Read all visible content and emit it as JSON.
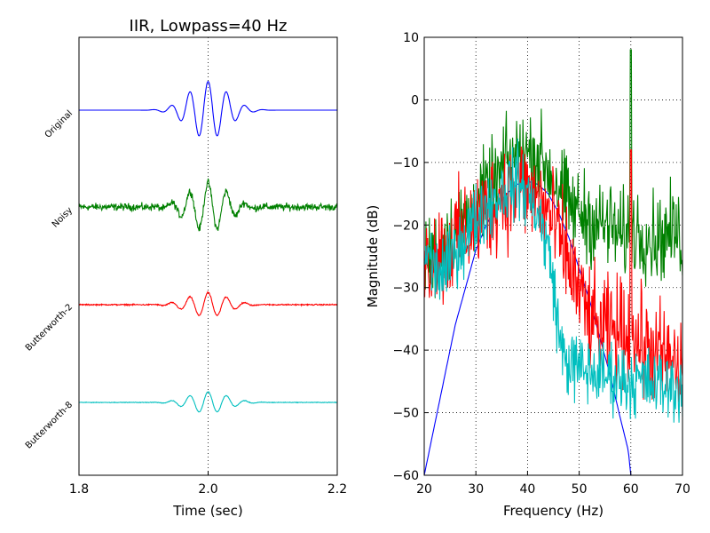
{
  "chart_data": [
    {
      "type": "line",
      "title": "IIR, Lowpass=40 Hz",
      "xlabel": "Time (sec)",
      "ylabel": "",
      "xlim": [
        1.8,
        2.2
      ],
      "xticks": [
        "1.8",
        "2.0",
        "2.2"
      ],
      "grid": true,
      "row_labels": [
        "Original",
        "Noisy",
        "Butterworth-2",
        "Butterworth-8"
      ],
      "series": [
        {
          "color": "#0000ff",
          "form": "wavelet",
          "center": 2.0,
          "frequency": 35,
          "amplitude": 0.95,
          "noise": 0
        },
        {
          "color": "#008000",
          "form": "wavelet",
          "center": 2.0,
          "frequency": 35,
          "amplitude": 0.8,
          "noise": 0.12
        },
        {
          "color": "#ff0000",
          "form": "wavelet",
          "center": 2.0,
          "frequency": 35,
          "amplitude": 0.4,
          "noise": 0.02
        },
        {
          "color": "#00bfbf",
          "form": "wavelet",
          "center": 2.0,
          "frequency": 35,
          "amplitude": 0.35,
          "noise": 0.01
        }
      ]
    },
    {
      "type": "line",
      "title": "",
      "xlabel": "Frequency (Hz)",
      "ylabel": "Magnitude (dB)",
      "xlim": [
        20,
        70
      ],
      "ylim": [
        -60,
        10
      ],
      "xticks": [
        "20",
        "30",
        "40",
        "50",
        "60",
        "70"
      ],
      "yticks": [
        "10",
        "0",
        "−10",
        "−20",
        "−30",
        "−40",
        "−50",
        "−60"
      ],
      "grid": true,
      "series": [
        {
          "color": "#0000ff",
          "points": [
            [
              20,
              -60
            ],
            [
              22,
              -52
            ],
            [
              24,
              -44
            ],
            [
              26,
              -36
            ],
            [
              28,
              -30
            ],
            [
              30,
              -24
            ],
            [
              32,
              -20
            ],
            [
              34,
              -17
            ],
            [
              36,
              -15
            ],
            [
              38,
              -13.5
            ],
            [
              40,
              -13
            ],
            [
              42,
              -13.5
            ],
            [
              44,
              -15
            ],
            [
              46,
              -18
            ],
            [
              48,
              -22
            ],
            [
              50,
              -27
            ],
            [
              52,
              -32
            ],
            [
              54,
              -38
            ],
            [
              56,
              -44
            ],
            [
              58,
              -51
            ],
            [
              59.5,
              -56
            ],
            [
              60,
              -60
            ]
          ]
        },
        {
          "color": "#008000",
          "noise": 5,
          "spike": [
            60,
            8
          ],
          "points": [
            [
              20,
              -26
            ],
            [
              24,
              -23
            ],
            [
              28,
              -19
            ],
            [
              32,
              -15
            ],
            [
              34,
              -13
            ],
            [
              36,
              -10
            ],
            [
              38,
              -9
            ],
            [
              40,
              -8.5
            ],
            [
              42,
              -9
            ],
            [
              44,
              -11
            ],
            [
              46,
              -14
            ],
            [
              48,
              -17
            ],
            [
              50,
              -18
            ],
            [
              52,
              -19
            ],
            [
              54,
              -20
            ],
            [
              56,
              -20
            ],
            [
              58,
              -22
            ],
            [
              60,
              -21
            ],
            [
              62,
              -21
            ],
            [
              64,
              -22
            ],
            [
              66,
              -22
            ],
            [
              68,
              -21
            ],
            [
              70,
              -22
            ]
          ]
        },
        {
          "color": "#ff0000",
          "noise": 6,
          "spike": [
            60,
            -8
          ],
          "points": [
            [
              20,
              -26
            ],
            [
              24,
              -24
            ],
            [
              28,
              -21
            ],
            [
              32,
              -18
            ],
            [
              34,
              -16
            ],
            [
              36,
              -15
            ],
            [
              38,
              -14
            ],
            [
              40,
              -14.5
            ],
            [
              42,
              -16
            ],
            [
              44,
              -18
            ],
            [
              46,
              -22
            ],
            [
              48,
              -26
            ],
            [
              50,
              -31
            ],
            [
              52,
              -35
            ],
            [
              54,
              -37
            ],
            [
              56,
              -37
            ],
            [
              58,
              -37
            ],
            [
              60,
              -38
            ],
            [
              62,
              -39
            ],
            [
              64,
              -40
            ],
            [
              66,
              -41
            ],
            [
              68,
              -42
            ],
            [
              70,
              -44
            ]
          ]
        },
        {
          "color": "#00bfbf",
          "noise": 4,
          "points": [
            [
              20,
              -24
            ],
            [
              22,
              -27
            ],
            [
              24,
              -28
            ],
            [
              26,
              -24
            ],
            [
              28,
              -22
            ],
            [
              30,
              -19
            ],
            [
              32,
              -17
            ],
            [
              34,
              -15.5
            ],
            [
              36,
              -14
            ],
            [
              38,
              -13
            ],
            [
              40,
              -15
            ],
            [
              42,
              -18
            ],
            [
              44,
              -24
            ],
            [
              45,
              -29
            ],
            [
              46,
              -37
            ],
            [
              47,
              -41
            ],
            [
              48,
              -42
            ],
            [
              50,
              -43
            ],
            [
              52,
              -43.5
            ],
            [
              54,
              -44
            ],
            [
              56,
              -44
            ],
            [
              58,
              -44.5
            ],
            [
              60,
              -45
            ],
            [
              62,
              -45
            ],
            [
              64,
              -45.5
            ],
            [
              66,
              -45.5
            ],
            [
              68,
              -45.8
            ],
            [
              70,
              -46
            ]
          ]
        }
      ]
    }
  ]
}
